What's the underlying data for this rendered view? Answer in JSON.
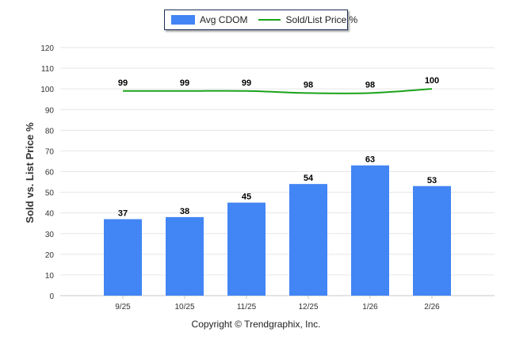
{
  "legend": {
    "bar_label": "Avg CDOM",
    "line_label": "Sold/List Price %"
  },
  "copyright": "Copyright © Trendgraphix, Inc.",
  "colors": {
    "bar": "#4285f4",
    "line": "#1aa31a",
    "grid": "#e6e6e6",
    "axis_text": "#333333"
  },
  "chart_data": {
    "type": "bar",
    "title": "",
    "xlabel": "",
    "ylabel": "Sold vs. List Price %",
    "ylim": [
      0,
      120
    ],
    "yticks": [
      0,
      10,
      20,
      30,
      40,
      50,
      60,
      70,
      80,
      90,
      100,
      110,
      120
    ],
    "grid": true,
    "legend_position": "top-center",
    "categories": [
      "9/25",
      "10/25",
      "11/25",
      "12/25",
      "1/26",
      "2/26"
    ],
    "series": [
      {
        "name": "Avg CDOM",
        "kind": "bar",
        "values": [
          37,
          38,
          45,
          54,
          63,
          53
        ]
      },
      {
        "name": "Sold/List Price %",
        "kind": "line",
        "values": [
          99,
          99,
          99,
          98,
          98,
          100
        ]
      }
    ]
  }
}
